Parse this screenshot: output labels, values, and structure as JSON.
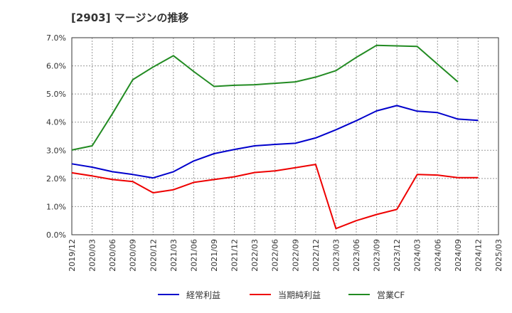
{
  "chart_data": {
    "type": "line",
    "title": "[2903]  マージンの推移",
    "x": [
      "2019/12",
      "2020/03",
      "2020/06",
      "2020/09",
      "2020/12",
      "2021/03",
      "2021/06",
      "2021/09",
      "2021/12",
      "2022/03",
      "2022/06",
      "2022/09",
      "2022/12",
      "2023/03",
      "2023/06",
      "2023/09",
      "2023/12",
      "2024/03",
      "2024/06",
      "2024/09",
      "2024/12"
    ],
    "x_ticks": [
      "2019/12",
      "2020/03",
      "2020/06",
      "2020/09",
      "2020/12",
      "2021/03",
      "2021/06",
      "2021/09",
      "2021/12",
      "2022/03",
      "2022/06",
      "2022/09",
      "2022/12",
      "2023/03",
      "2023/06",
      "2023/09",
      "2023/12",
      "2024/03",
      "2024/06",
      "2024/09",
      "2024/12",
      "2025/03"
    ],
    "y_ticks": [
      "0.0%",
      "1.0%",
      "2.0%",
      "3.0%",
      "4.0%",
      "5.0%",
      "6.0%",
      "7.0%"
    ],
    "ylim": [
      0,
      7
    ],
    "xlabel": "",
    "ylabel": "",
    "grid": true,
    "legend_position": "bottom",
    "series": [
      {
        "name": "経常利益",
        "color": "#0000cc",
        "values": [
          2.52,
          2.4,
          2.24,
          2.14,
          2.02,
          2.24,
          2.62,
          2.88,
          3.03,
          3.16,
          3.21,
          3.25,
          3.44,
          3.73,
          4.05,
          4.4,
          4.59,
          4.39,
          4.34,
          4.11,
          4.06
        ]
      },
      {
        "name": "当期純利益",
        "color": "#ee0000",
        "values": [
          2.2,
          2.09,
          1.96,
          1.89,
          1.49,
          1.6,
          1.86,
          1.96,
          2.06,
          2.21,
          2.27,
          2.38,
          2.5,
          0.22,
          0.5,
          0.72,
          0.9,
          2.14,
          2.12,
          2.03,
          2.03
        ]
      },
      {
        "name": "営業CF",
        "color": "#228b22",
        "values": [
          3.01,
          3.16,
          4.3,
          5.51,
          5.96,
          6.36,
          5.8,
          5.27,
          5.31,
          5.33,
          5.38,
          5.43,
          5.6,
          5.83,
          6.3,
          6.73,
          6.71,
          6.69,
          6.06,
          5.43,
          null
        ]
      }
    ]
  }
}
